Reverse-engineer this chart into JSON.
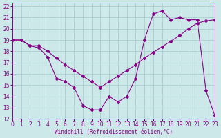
{
  "bg_color": "#cce8e8",
  "line_color": "#880088",
  "grid_color": "#aacccc",
  "xlabel": "Windchill (Refroidissement éolien,°C)",
  "xlim": [
    0,
    23
  ],
  "ylim": [
    12,
    22.3
  ],
  "xticks": [
    0,
    1,
    2,
    3,
    4,
    5,
    6,
    7,
    8,
    9,
    10,
    11,
    12,
    13,
    14,
    15,
    16,
    17,
    18,
    19,
    20,
    21,
    22,
    23
  ],
  "yticks": [
    12,
    13,
    14,
    15,
    16,
    17,
    18,
    19,
    20,
    21,
    22
  ],
  "series1_x": [
    0,
    1,
    2,
    3,
    4,
    5,
    6,
    7,
    8,
    9,
    10,
    11,
    12,
    13,
    14,
    15,
    16,
    17,
    18,
    19,
    20,
    21,
    22,
    23
  ],
  "series1_y": [
    19.0,
    19.0,
    18.5,
    18.3,
    17.5,
    15.6,
    15.3,
    14.8,
    13.2,
    12.8,
    12.8,
    14.0,
    13.5,
    14.0,
    15.6,
    19.0,
    21.3,
    21.6,
    20.8,
    21.0,
    20.8,
    20.8,
    14.5,
    12.3
  ],
  "series2_x": [
    0,
    1,
    2,
    3,
    4,
    5,
    6,
    7,
    8,
    9,
    10,
    11,
    12,
    13,
    14,
    15,
    16,
    17,
    18,
    19,
    20,
    21,
    22,
    23
  ],
  "series2_y": [
    19.0,
    19.0,
    18.5,
    18.5,
    18.0,
    17.4,
    16.8,
    16.3,
    15.8,
    15.3,
    14.8,
    15.3,
    15.8,
    16.3,
    16.8,
    17.4,
    17.9,
    18.4,
    18.9,
    19.4,
    20.0,
    20.5,
    20.7,
    20.8
  ]
}
